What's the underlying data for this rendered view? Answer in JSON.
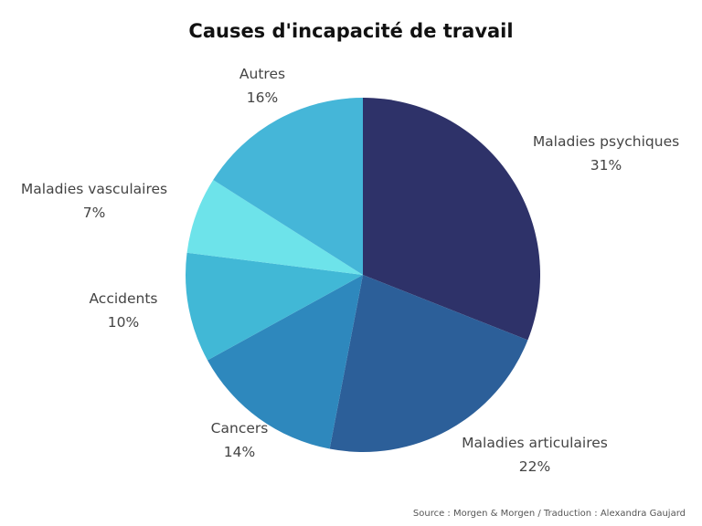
{
  "chart_data": {
    "type": "pie",
    "title": "Causes d'incapacité de travail",
    "slices": [
      {
        "label": "Maladies psychiques",
        "value": 31,
        "value_label": "31%",
        "color": "#2e3269"
      },
      {
        "label": "Maladies articulaires",
        "value": 22,
        "value_label": "22%",
        "color": "#2c5f99"
      },
      {
        "label": "Cancers",
        "value": 14,
        "value_label": "14%",
        "color": "#2e88bd"
      },
      {
        "label": "Accidents",
        "value": 10,
        "value_label": "10%",
        "color": "#41b8d6"
      },
      {
        "label": "Maladies vasculaires",
        "value": 7,
        "value_label": "7%",
        "color": "#6de3ea"
      },
      {
        "label": "Autres",
        "value": 16,
        "value_label": "16%",
        "color": "#45b6d8"
      }
    ],
    "start_angle": "12 o'clock",
    "direction": "clockwise"
  },
  "source": "Source : Morgen & Morgen / Traduction : Alexandra Gaujard"
}
